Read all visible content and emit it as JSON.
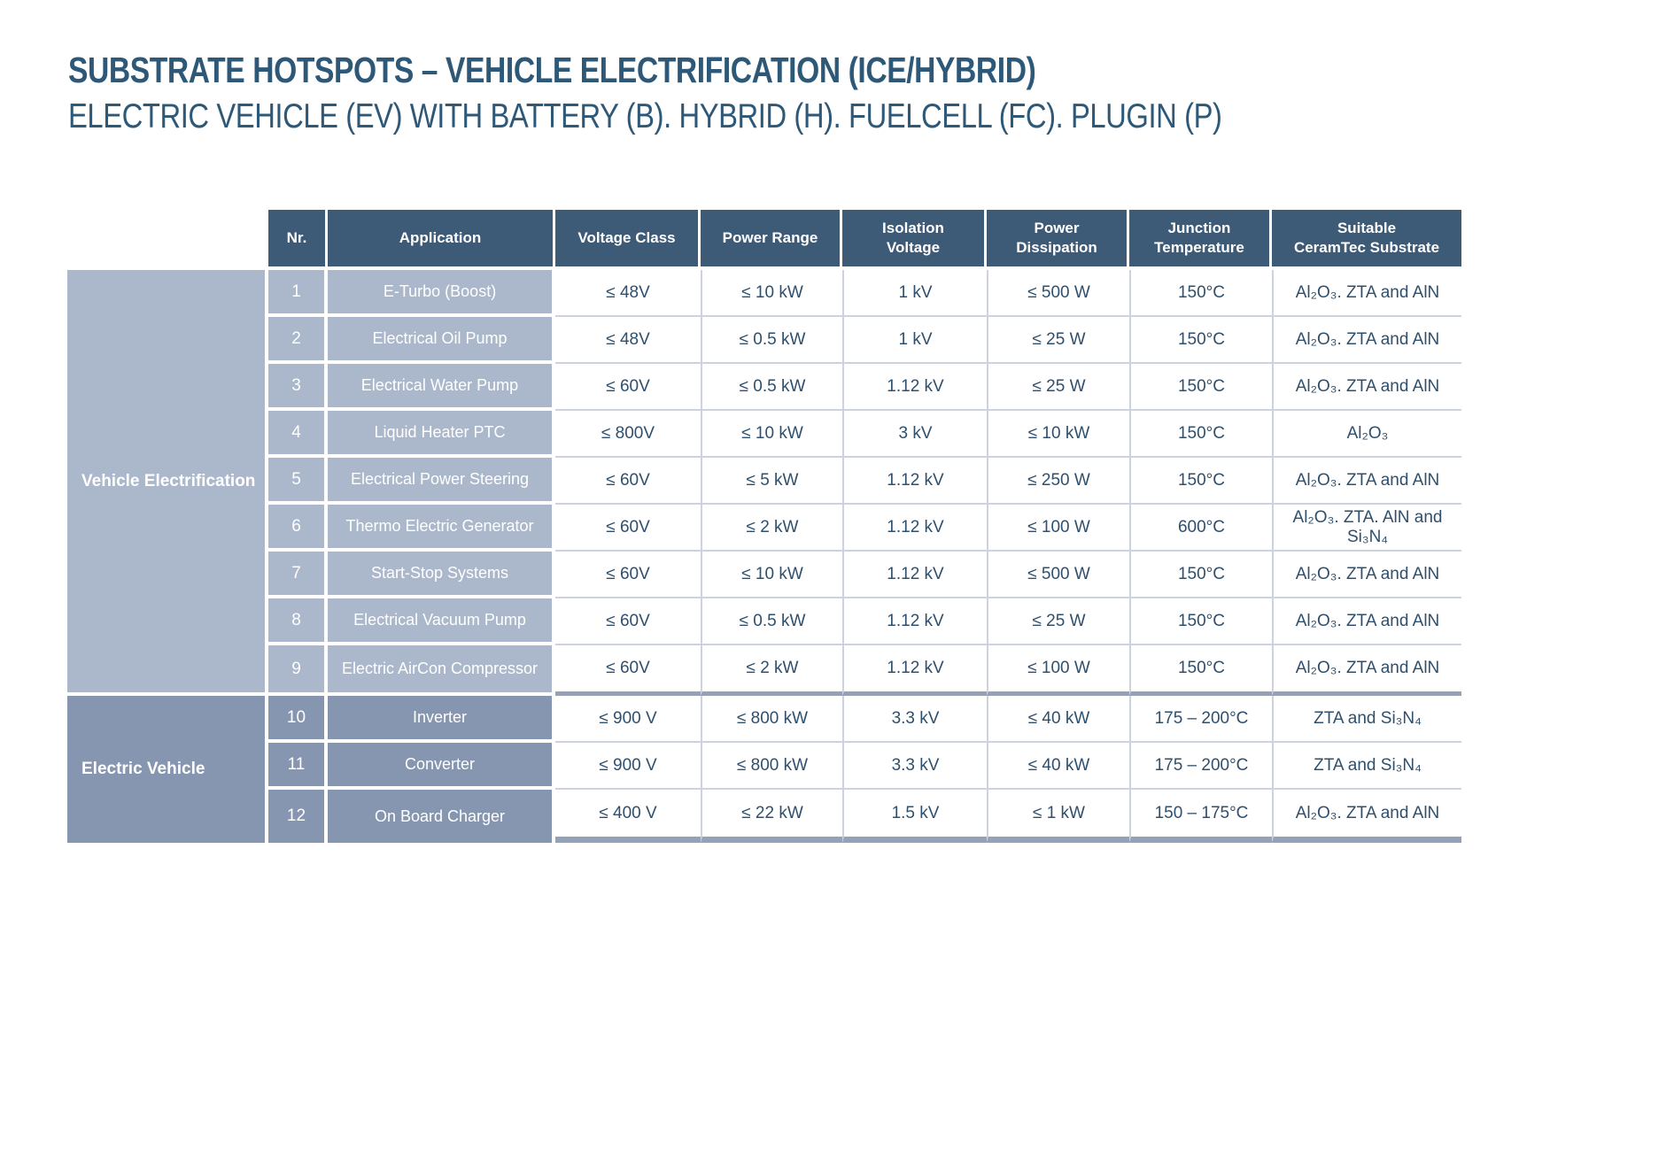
{
  "page": {
    "title": "SUBSTRATE HOTSPOTS – VEHICLE ELECTRIFICATION (ICE/HYBRID)",
    "subtitle": "ELECTRIC VEHICLE (EV) WITH BATTERY (B). HYBRID (H). FUELCELL (FC). PLUGIN (P)"
  },
  "colors": {
    "title_text": "#2d5878",
    "header_background": "#3d5a77",
    "group1_cell_background": "#abb7cb",
    "group2_cell_background": "#8696b0",
    "data_text": "#2e4f6d",
    "row_separator": "#ccd3de",
    "group_separator": "#93a2b8"
  },
  "table": {
    "columns": [
      "Nr.",
      "Application",
      "Voltage Class",
      "Power Range",
      "Isolation\nVoltage",
      "Power\nDissipation",
      "Junction\nTemperature",
      "Suitable\nCeramTec Substrate"
    ],
    "groups": [
      {
        "label": "Vehicle Electrification",
        "rows": [
          {
            "nr": "1",
            "application": "E-Turbo (Boost)",
            "voltage_class": "≤ 48V",
            "power_range": "≤ 10 kW",
            "isolation_voltage": "1 kV",
            "power_dissipation": "≤ 500 W",
            "junction_temperature": "150°C",
            "substrate": "Al₂O₃. ZTA and AlN"
          },
          {
            "nr": "2",
            "application": "Electrical Oil Pump",
            "voltage_class": "≤ 48V",
            "power_range": "≤ 0.5 kW",
            "isolation_voltage": "1 kV",
            "power_dissipation": "≤ 25 W",
            "junction_temperature": "150°C",
            "substrate": "Al₂O₃. ZTA and AlN"
          },
          {
            "nr": "3",
            "application": "Electrical Water Pump",
            "voltage_class": "≤ 60V",
            "power_range": "≤ 0.5 kW",
            "isolation_voltage": "1.12 kV",
            "power_dissipation": "≤ 25 W",
            "junction_temperature": "150°C",
            "substrate": "Al₂O₃. ZTA and AlN"
          },
          {
            "nr": "4",
            "application": "Liquid Heater PTC",
            "voltage_class": "≤ 800V",
            "power_range": "≤ 10 kW",
            "isolation_voltage": "3 kV",
            "power_dissipation": "≤ 10 kW",
            "junction_temperature": "150°C",
            "substrate": "Al₂O₃"
          },
          {
            "nr": "5",
            "application": "Electrical Power Steering",
            "voltage_class": "≤ 60V",
            "power_range": "≤ 5 kW",
            "isolation_voltage": "1.12 kV",
            "power_dissipation": "≤ 250 W",
            "junction_temperature": "150°C",
            "substrate": "Al₂O₃. ZTA and AlN"
          },
          {
            "nr": "6",
            "application": "Thermo Electric Generator",
            "voltage_class": "≤ 60V",
            "power_range": "≤ 2 kW",
            "isolation_voltage": "1.12 kV",
            "power_dissipation": "≤ 100 W",
            "junction_temperature": "600°C",
            "substrate": "Al₂O₃. ZTA. AlN and Si₃N₄"
          },
          {
            "nr": "7",
            "application": "Start-Stop Systems",
            "voltage_class": "≤ 60V",
            "power_range": "≤ 10 kW",
            "isolation_voltage": "1.12 kV",
            "power_dissipation": "≤ 500 W",
            "junction_temperature": "150°C",
            "substrate": "Al₂O₃. ZTA and AlN"
          },
          {
            "nr": "8",
            "application": "Electrical Vacuum Pump",
            "voltage_class": "≤ 60V",
            "power_range": "≤ 0.5 kW",
            "isolation_voltage": "1.12 kV",
            "power_dissipation": "≤ 25 W",
            "junction_temperature": "150°C",
            "substrate": "Al₂O₃. ZTA and AlN"
          },
          {
            "nr": "9",
            "application": "Electric AirCon Compressor",
            "voltage_class": "≤ 60V",
            "power_range": "≤ 2 kW",
            "isolation_voltage": "1.12 kV",
            "power_dissipation": "≤ 100 W",
            "junction_temperature": "150°C",
            "substrate": "Al₂O₃. ZTA and AlN"
          }
        ]
      },
      {
        "label": "Electric Vehicle",
        "rows": [
          {
            "nr": "10",
            "application": "Inverter",
            "voltage_class": "≤ 900 V",
            "power_range": "≤ 800 kW",
            "isolation_voltage": "3.3 kV",
            "power_dissipation": "≤ 40 kW",
            "junction_temperature": "175 – 200°C",
            "substrate": "ZTA and Si₃N₄"
          },
          {
            "nr": "11",
            "application": "Converter",
            "voltage_class": "≤ 900 V",
            "power_range": "≤ 800 kW",
            "isolation_voltage": "3.3 kV",
            "power_dissipation": "≤ 40 kW",
            "junction_temperature": "175 – 200°C",
            "substrate": "ZTA and Si₃N₄"
          },
          {
            "nr": "12",
            "application": "On Board Charger",
            "voltage_class": "≤ 400 V",
            "power_range": "≤ 22 kW",
            "isolation_voltage": "1.5 kV",
            "power_dissipation": "≤ 1 kW",
            "junction_temperature": "150 – 175°C",
            "substrate": "Al₂O₃. ZTA and AlN"
          }
        ]
      }
    ]
  }
}
